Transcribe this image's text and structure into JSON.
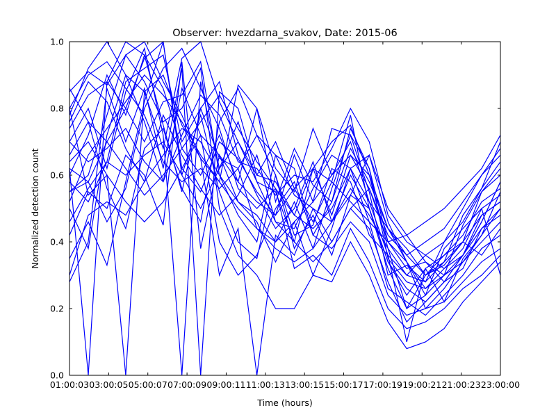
{
  "chart_data": {
    "type": "line",
    "title": "Observer: hvezdarna_svakov, Date: 2015-06",
    "xlabel": "Time (hours)",
    "ylabel": "Normalized detection count",
    "x_tick_labels": [
      "01:00:03",
      "03:00:05",
      "05:00:07",
      "07:00:09",
      "09:00:11",
      "11:00:13",
      "13:00:15",
      "15:00:17",
      "17:00:19",
      "19:00:21",
      "21:00:23",
      "23:00:00"
    ],
    "y_tick_labels": [
      "0.0",
      "0.2",
      "0.4",
      "0.6",
      "0.8",
      "1.0"
    ],
    "ylim": [
      0,
      1
    ],
    "xlim": [
      0,
      23
    ],
    "grid": false,
    "line_color": "#0000ff",
    "x_hours": [
      0,
      1,
      2,
      3,
      4,
      5,
      6,
      7,
      8,
      9,
      10,
      11,
      12,
      13,
      14,
      15,
      16,
      17,
      18,
      19,
      20,
      21,
      22,
      23
    ],
    "series": [
      {
        "values": [
          0.85,
          0.91,
          0.87,
          0.96,
          1.0,
          0.88,
          0.78,
          0.65,
          0.58,
          0.87,
          0.8,
          0.62,
          0.55,
          0.74,
          0.6,
          0.7,
          0.52,
          0.44,
          0.36,
          0.3,
          0.36,
          0.4,
          0.55,
          0.6
        ]
      },
      {
        "values": [
          0.55,
          0.58,
          0.7,
          0.8,
          0.95,
          1.0,
          0.62,
          0.55,
          0.7,
          0.65,
          0.55,
          0.48,
          0.66,
          0.52,
          0.74,
          0.72,
          0.62,
          0.35,
          0.28,
          0.26,
          0.32,
          0.36,
          0.48,
          0.52
        ]
      },
      {
        "values": [
          0.78,
          0.92,
          1.0,
          0.9,
          0.85,
          0.68,
          0.95,
          1.0,
          0.82,
          0.7,
          0.6,
          0.58,
          0.48,
          0.62,
          0.7,
          0.75,
          0.6,
          0.38,
          0.2,
          0.24,
          0.3,
          0.45,
          0.55,
          0.62
        ]
      },
      {
        "values": [
          0.62,
          0.0,
          0.88,
          1.0,
          0.96,
          0.75,
          0.55,
          0.8,
          0.65,
          0.62,
          0.44,
          0.4,
          0.52,
          0.38,
          0.56,
          0.72,
          0.55,
          0.3,
          0.33,
          0.28,
          0.4,
          0.5,
          0.6,
          0.68
        ]
      },
      {
        "values": [
          0.35,
          0.46,
          0.33,
          0.58,
          0.82,
          1.0,
          0.6,
          0.78,
          0.55,
          0.4,
          0.35,
          0.6,
          0.42,
          0.45,
          0.62,
          0.58,
          0.42,
          0.36,
          0.1,
          0.32,
          0.22,
          0.35,
          0.42,
          0.55
        ]
      },
      {
        "values": [
          0.7,
          0.8,
          0.62,
          0.85,
          0.98,
          0.72,
          0.0,
          0.88,
          0.62,
          0.76,
          0.58,
          0.55,
          0.4,
          0.62,
          0.48,
          0.66,
          0.56,
          0.4,
          0.34,
          0.24,
          0.38,
          0.44,
          0.5,
          0.3
        ]
      },
      {
        "values": [
          0.28,
          0.4,
          0.86,
          0.7,
          0.86,
          0.62,
          0.92,
          0.0,
          0.85,
          0.8,
          0.6,
          0.7,
          0.56,
          0.46,
          0.58,
          0.78,
          0.5,
          0.32,
          0.2,
          0.3,
          0.33,
          0.4,
          0.36,
          0.44
        ]
      },
      {
        "values": [
          0.8,
          0.54,
          0.6,
          0.0,
          0.85,
          0.9,
          0.75,
          0.65,
          0.3,
          0.44,
          0.0,
          0.42,
          0.36,
          0.5,
          0.4,
          0.5,
          0.44,
          0.28,
          0.16,
          0.22,
          0.28,
          0.32,
          0.44,
          0.5
        ]
      },
      {
        "values": [
          0.6,
          0.72,
          0.9,
          0.78,
          0.96,
          0.86,
          0.68,
          0.6,
          0.72,
          0.58,
          0.8,
          0.52,
          0.68,
          0.57,
          0.52,
          0.74,
          0.62,
          0.4,
          0.32,
          0.34,
          0.28,
          0.36,
          0.46,
          0.58
        ]
      },
      {
        "values": [
          0.42,
          0.55,
          0.5,
          0.66,
          0.6,
          0.45,
          0.94,
          0.38,
          0.66,
          0.52,
          0.46,
          0.34,
          0.46,
          0.3,
          0.44,
          0.62,
          0.46,
          0.26,
          0.22,
          0.18,
          0.24,
          0.3,
          0.38,
          0.42
        ]
      },
      {
        "values": [
          0.74,
          0.84,
          0.88,
          0.8,
          0.7,
          0.82,
          0.84,
          0.94,
          0.6,
          0.48,
          0.4,
          0.66,
          0.62,
          0.42,
          0.52,
          0.68,
          0.58,
          0.44,
          0.38,
          0.3,
          0.34,
          0.48,
          0.56,
          0.64
        ]
      },
      {
        "values": [
          0.58,
          0.52,
          0.64,
          0.88,
          0.92,
          0.96,
          0.7,
          0.8,
          0.88,
          0.66,
          0.54,
          0.44,
          0.5,
          0.64,
          0.46,
          0.6,
          0.5,
          0.34,
          0.24,
          0.32,
          0.36,
          0.42,
          0.52,
          0.56
        ]
      },
      {
        "values": [
          0.66,
          0.76,
          0.56,
          0.44,
          0.68,
          0.74,
          0.56,
          0.46,
          0.76,
          0.86,
          0.72,
          0.6,
          0.38,
          0.48,
          0.36,
          0.54,
          0.66,
          0.46,
          0.34,
          0.2,
          0.26,
          0.34,
          0.4,
          0.46
        ]
      },
      {
        "values": [
          0.5,
          0.38,
          0.72,
          0.9,
          0.76,
          0.58,
          0.86,
          0.72,
          0.4,
          0.3,
          0.36,
          0.5,
          0.58,
          0.42,
          0.38,
          0.46,
          0.4,
          0.24,
          0.18,
          0.2,
          0.22,
          0.28,
          0.34,
          0.38
        ]
      },
      {
        "values": [
          0.76,
          0.88,
          0.82,
          0.68,
          0.58,
          0.78,
          0.66,
          0.56,
          0.48,
          0.54,
          0.66,
          0.46,
          0.44,
          0.56,
          0.66,
          0.62,
          0.52,
          0.36,
          0.3,
          0.36,
          0.32,
          0.38,
          0.5,
          0.54
        ]
      },
      {
        "values": [
          0.62,
          0.58,
          0.46,
          0.56,
          0.8,
          0.92,
          0.98,
          0.86,
          0.74,
          0.56,
          0.5,
          0.56,
          0.32,
          0.36,
          0.3,
          0.44,
          0.34,
          0.2,
          0.14,
          0.16,
          0.2,
          0.26,
          0.3,
          0.36
        ]
      },
      {
        "values": [
          0.55,
          0.6,
          0.78,
          0.96,
          0.88,
          0.76,
          0.8,
          0.92,
          0.5,
          0.36,
          0.3,
          0.2,
          0.2,
          0.3,
          0.28,
          0.4,
          0.3,
          0.16,
          0.08,
          0.1,
          0.14,
          0.22,
          0.28,
          0.34
        ]
      },
      {
        "values": [
          0.7,
          0.64,
          0.68,
          0.74,
          0.64,
          0.58,
          0.72,
          0.84,
          0.78,
          0.64,
          0.62,
          0.54,
          0.6,
          0.58,
          0.68,
          0.8,
          0.7,
          0.48,
          0.4,
          0.36,
          0.4,
          0.46,
          0.56,
          0.7
        ]
      },
      {
        "values": [
          0.8,
          0.9,
          0.94,
          0.86,
          0.78,
          0.64,
          0.58,
          0.62,
          0.56,
          0.62,
          0.72,
          0.66,
          0.54,
          0.5,
          0.46,
          0.56,
          0.48,
          0.38,
          0.3,
          0.28,
          0.34,
          0.4,
          0.48,
          0.52
        ]
      },
      {
        "values": [
          0.46,
          0.56,
          0.64,
          0.6,
          0.66,
          0.7,
          0.6,
          0.5,
          0.62,
          0.7,
          0.58,
          0.46,
          0.4,
          0.34,
          0.4,
          0.5,
          0.56,
          0.42,
          0.36,
          0.4,
          0.44,
          0.52,
          0.6,
          0.66
        ]
      },
      {
        "values": [
          0.3,
          0.48,
          0.52,
          0.48,
          0.58,
          0.66,
          0.74,
          0.7,
          0.6,
          0.52,
          0.48,
          0.4,
          0.46,
          0.52,
          0.6,
          0.66,
          0.6,
          0.44,
          0.34,
          0.26,
          0.3,
          0.36,
          0.44,
          0.48
        ]
      },
      {
        "values": [
          0.86,
          0.76,
          0.7,
          0.62,
          0.54,
          0.6,
          0.68,
          0.76,
          0.84,
          0.74,
          0.64,
          0.56,
          0.48,
          0.44,
          0.5,
          0.62,
          0.66,
          0.5,
          0.42,
          0.34,
          0.3,
          0.34,
          0.42,
          0.5
        ]
      },
      {
        "values": [
          0.52,
          0.66,
          0.74,
          0.82,
          0.9,
          0.84,
          0.76,
          0.66,
          0.58,
          0.5,
          0.44,
          0.38,
          0.34,
          0.38,
          0.46,
          0.54,
          0.5,
          0.34,
          0.26,
          0.22,
          0.28,
          0.36,
          0.46,
          0.58
        ]
      },
      {
        "values": [
          0.64,
          0.7,
          0.6,
          0.52,
          0.46,
          0.52,
          0.62,
          0.72,
          0.66,
          0.58,
          0.52,
          0.48,
          0.56,
          0.62,
          0.58,
          0.52,
          0.46,
          0.4,
          0.42,
          0.46,
          0.5,
          0.56,
          0.62,
          0.72
        ]
      }
    ]
  }
}
